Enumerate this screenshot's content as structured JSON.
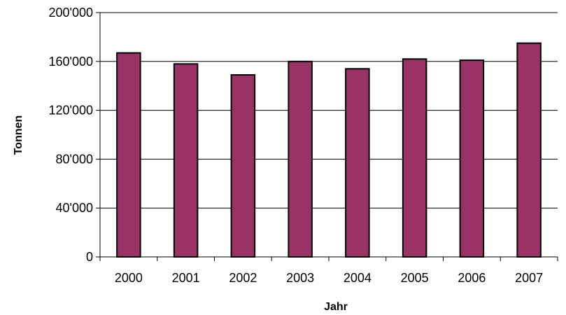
{
  "chart_data": {
    "type": "bar",
    "title": "",
    "xlabel": "Jahr",
    "ylabel": "Tonnen",
    "categories": [
      "2000",
      "2001",
      "2002",
      "2003",
      "2004",
      "2005",
      "2006",
      "2007"
    ],
    "values": [
      167000,
      158000,
      149000,
      160000,
      154000,
      162000,
      161000,
      175000
    ],
    "ylim": [
      0,
      200000
    ],
    "yticks": [
      0,
      40000,
      80000,
      120000,
      160000,
      200000
    ],
    "ytick_labels": [
      "0",
      "40'000",
      "80'000",
      "120'000",
      "160'000",
      "200'000"
    ],
    "grid": true,
    "legend": "none",
    "bar_color": "#993366",
    "bar_edge_color": "#000000"
  }
}
